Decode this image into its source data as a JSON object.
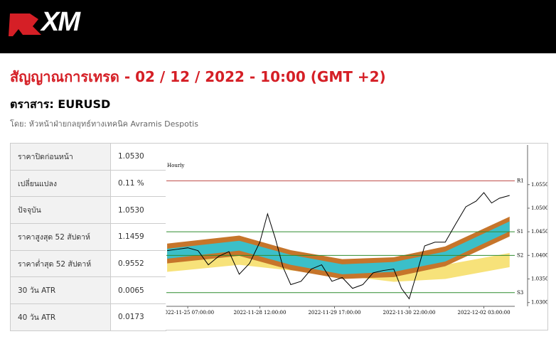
{
  "header": {
    "logo": "XM"
  },
  "title": "สัญญาณการเทรด - 02 / 12 / 2022 - 10:00 (GMT +2)",
  "instrument": "ตราสาร: EURUSD",
  "author": "โดย: หัวหน้าฝ่ายกลยุทธ์ทางเทคนิค Avramis Despotis",
  "table": {
    "rows": [
      [
        "ราคาปิดก่อนหน้า",
        "1.0530"
      ],
      [
        "เปลี่ยนแปลง",
        "0.11 %"
      ],
      [
        "ปัจจุบัน",
        "1.0530"
      ],
      [
        "ราคาสูงสุด 52 สัปดาห์",
        "1.1459"
      ],
      [
        "ราคาต่ำสุด 52 สัปดาห์",
        "0.9552"
      ],
      [
        "30 วัน ATR",
        "0.0065"
      ],
      [
        "40 วัน ATR",
        "0.0173"
      ]
    ]
  },
  "chart_data": {
    "type": "line",
    "subtitle": "Hourly",
    "x": [
      -8,
      -4,
      0,
      4,
      8,
      12,
      16,
      20,
      24,
      28,
      31,
      34,
      37,
      40,
      44,
      48,
      52,
      56,
      60,
      64,
      68,
      72,
      76,
      80,
      83,
      86,
      89,
      92,
      96,
      100,
      104,
      108,
      112,
      115,
      118,
      121,
      125
    ],
    "values": [
      1.041,
      1.0413,
      1.0416,
      1.041,
      1.038,
      1.0398,
      1.0408,
      1.036,
      1.0383,
      1.0428,
      1.0488,
      1.0436,
      1.0375,
      1.0338,
      1.0345,
      1.0371,
      1.038,
      1.0345,
      1.0353,
      1.033,
      1.0338,
      1.0363,
      1.0368,
      1.0371,
      1.033,
      1.0308,
      1.0363,
      1.042,
      1.0428,
      1.0428,
      1.0466,
      1.0503,
      1.0515,
      1.0533,
      1.0511,
      1.0521,
      1.0527
    ],
    "color": "#000000",
    "bands": [
      {
        "color": "#f7e27a",
        "x": [
          -8,
          20,
          40,
          60,
          80,
          100,
          125
        ],
        "upper": [
          1.0398,
          1.0413,
          1.0401,
          1.039,
          1.038,
          1.038,
          1.0405
        ],
        "lower": [
          1.0365,
          1.038,
          1.0368,
          1.0357,
          1.0344,
          1.035,
          1.0375
        ]
      },
      {
        "color": "#c6752b",
        "x": [
          -8,
          20,
          40,
          60,
          80,
          100,
          125
        ],
        "upper": [
          1.0425,
          1.0442,
          1.0411,
          1.0392,
          1.0396,
          1.0419,
          1.0482
        ],
        "lower": [
          1.0383,
          1.0399,
          1.0369,
          1.035,
          1.0354,
          1.0377,
          1.044
        ]
      },
      {
        "color": "#3bbfc9",
        "x": [
          -8,
          20,
          40,
          60,
          80,
          100,
          125
        ],
        "upper": [
          1.0414,
          1.0431,
          1.0401,
          1.0381,
          1.0386,
          1.0408,
          1.0472
        ],
        "lower": [
          1.0393,
          1.041,
          1.038,
          1.036,
          1.0365,
          1.0387,
          1.0451
        ]
      }
    ],
    "levels": [
      {
        "label": "R1",
        "value": 1.0558,
        "color": "#c0504d"
      },
      {
        "label": "S1",
        "value": 1.045,
        "color": "#2e8b2e"
      },
      {
        "label": "S2",
        "value": 1.04,
        "color": "#2e8b2e"
      },
      {
        "label": "S3",
        "value": 1.0321,
        "color": "#2e8b2e"
      }
    ],
    "xlim": [
      -8.3,
      127
    ],
    "xticks": [
      {
        "value": 0,
        "label": "2022-11-25 07:00:00"
      },
      {
        "value": 28,
        "label": "2022-11-28 12:00:00"
      },
      {
        "value": 57,
        "label": "2022-11-29 17:00:00"
      },
      {
        "value": 86,
        "label": "2022-11-30 22:00:00"
      },
      {
        "value": 115,
        "label": "2022-12-02 03:00:00"
      }
    ],
    "ylim": [
      1.0292,
      1.0634
    ],
    "yticks": [
      {
        "value": 1.03,
        "label": "1.0300"
      },
      {
        "value": 1.035,
        "label": "1.0350"
      },
      {
        "value": 1.04,
        "label": "1.0400"
      },
      {
        "value": 1.045,
        "label": "1.0450"
      },
      {
        "value": 1.05,
        "label": "1.0500"
      },
      {
        "value": 1.055,
        "label": "1.0550"
      }
    ]
  }
}
